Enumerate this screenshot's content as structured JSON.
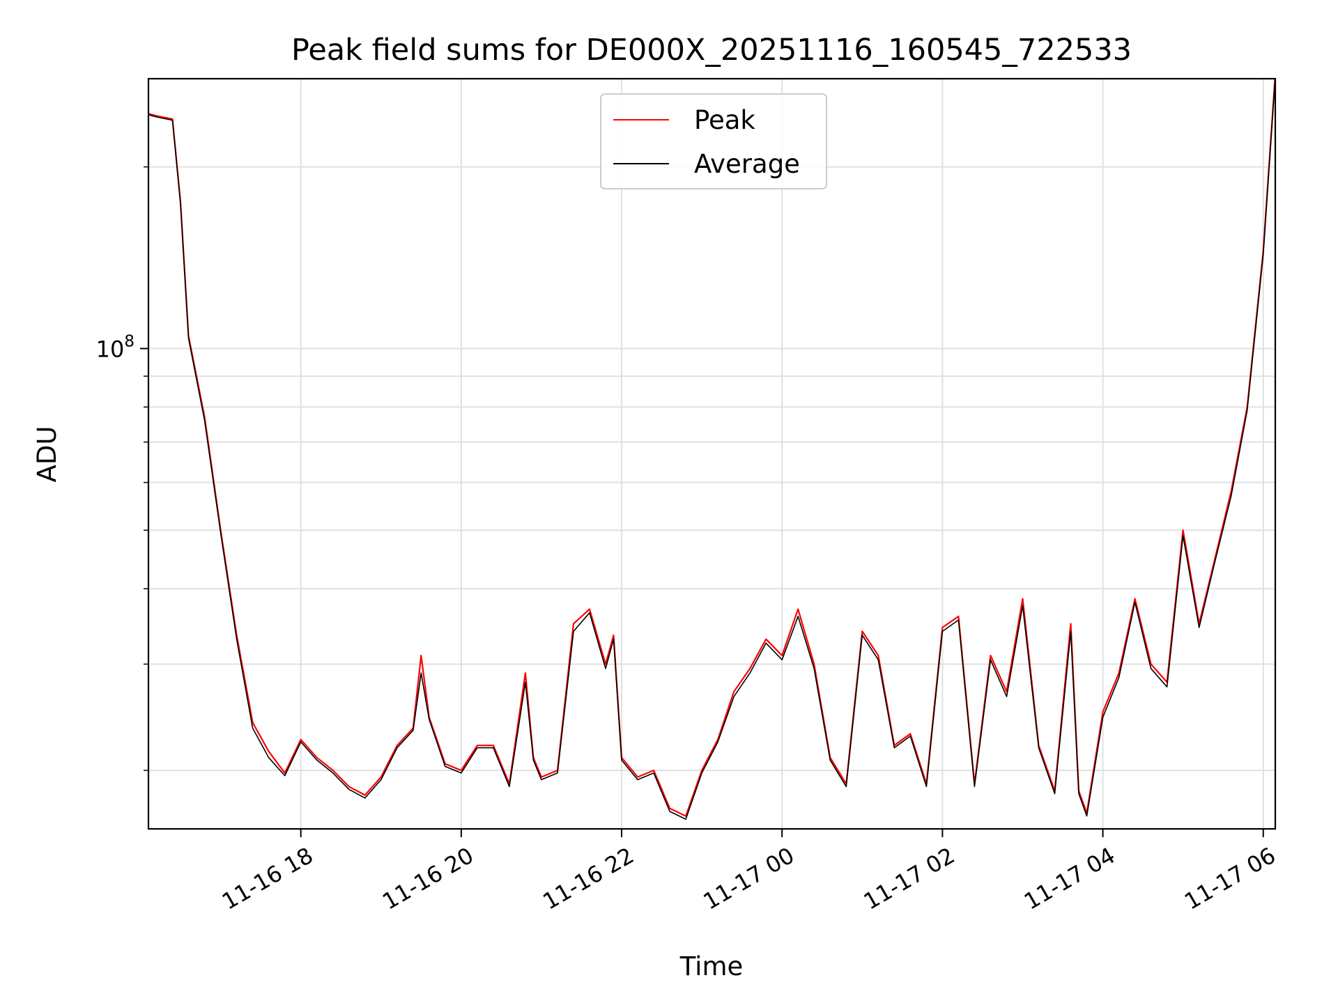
{
  "chart_data": {
    "type": "line",
    "title": "Peak field sums for DE000X_20251116_160545_722533",
    "xlabel": "Time",
    "ylabel": "ADU",
    "yscale": "log",
    "ylim": [
      16000000,
      280000000
    ],
    "xlim_hours": [
      16.1,
      30.15
    ],
    "x_ticks": [
      {
        "label": "11-16 18",
        "hour": 18
      },
      {
        "label": "11-16 20",
        "hour": 20
      },
      {
        "label": "11-16 22",
        "hour": 22
      },
      {
        "label": "11-17 00",
        "hour": 24
      },
      {
        "label": "11-17 02",
        "hour": 26
      },
      {
        "label": "11-17 04",
        "hour": 28
      },
      {
        "label": "11-17 06",
        "hour": 30
      }
    ],
    "y_major_tick": {
      "label_base": "10",
      "label_exp": "8",
      "value": 100000000
    },
    "grid": true,
    "legend_position": "upper center",
    "series": [
      {
        "name": "Peak",
        "color": "#ff0000",
        "x_hours": [
          16.1,
          16.2,
          16.4,
          16.5,
          16.6,
          16.8,
          17.0,
          17.2,
          17.4,
          17.6,
          17.8,
          18.0,
          18.2,
          18.4,
          18.6,
          18.8,
          19.0,
          19.2,
          19.4,
          19.5,
          19.6,
          19.8,
          20.0,
          20.2,
          20.4,
          20.6,
          20.8,
          20.9,
          21.0,
          21.2,
          21.4,
          21.6,
          21.8,
          21.9,
          22.0,
          22.2,
          22.4,
          22.6,
          22.8,
          23.0,
          23.2,
          23.4,
          23.6,
          23.8,
          24.0,
          24.2,
          24.4,
          24.6,
          24.8,
          25.0,
          25.2,
          25.4,
          25.6,
          25.8,
          26.0,
          26.2,
          26.4,
          26.6,
          26.8,
          27.0,
          27.2,
          27.4,
          27.6,
          27.7,
          27.8,
          28.0,
          28.2,
          28.4,
          28.6,
          28.8,
          29.0,
          29.2,
          29.4,
          29.6,
          29.8,
          30.0,
          30.15
        ],
        "values": [
          245000000,
          243000000,
          240000000,
          175000000,
          105000000,
          77000000,
          50000000,
          33500000,
          24000000,
          21500000,
          19800000,
          22500000,
          21000000,
          20000000,
          18800000,
          18200000,
          19500000,
          22000000,
          23500000,
          31000000,
          24500000,
          20500000,
          20000000,
          22000000,
          22000000,
          19000000,
          29000000,
          21000000,
          19500000,
          20000000,
          35000000,
          37000000,
          30000000,
          33500000,
          21000000,
          19500000,
          20000000,
          17300000,
          16800000,
          20000000,
          22500000,
          27000000,
          29500000,
          33000000,
          31000000,
          37000000,
          30000000,
          21000000,
          19000000,
          34000000,
          31000000,
          22000000,
          23000000,
          19000000,
          34500000,
          36000000,
          19000000,
          31000000,
          27000000,
          38500000,
          22000000,
          18500000,
          35000000,
          18500000,
          17000000,
          25000000,
          29000000,
          38500000,
          30000000,
          28000000,
          50000000,
          35000000,
          45000000,
          58000000,
          80000000,
          145000000,
          285000000
        ]
      },
      {
        "name": "Average",
        "color": "#000000",
        "x_hours": [
          16.1,
          16.2,
          16.4,
          16.5,
          16.6,
          16.8,
          17.0,
          17.2,
          17.4,
          17.6,
          17.8,
          18.0,
          18.2,
          18.4,
          18.6,
          18.8,
          19.0,
          19.2,
          19.4,
          19.5,
          19.6,
          19.8,
          20.0,
          20.2,
          20.4,
          20.6,
          20.8,
          20.9,
          21.0,
          21.2,
          21.4,
          21.6,
          21.8,
          21.9,
          22.0,
          22.2,
          22.4,
          22.6,
          22.8,
          23.0,
          23.2,
          23.4,
          23.6,
          23.8,
          24.0,
          24.2,
          24.4,
          24.6,
          24.8,
          25.0,
          25.2,
          25.4,
          25.6,
          25.8,
          26.0,
          26.2,
          26.4,
          26.6,
          26.8,
          27.0,
          27.2,
          27.4,
          27.6,
          27.7,
          27.8,
          28.0,
          28.2,
          28.4,
          28.6,
          28.8,
          29.0,
          29.2,
          29.4,
          29.6,
          29.8,
          30.0,
          30.15
        ],
        "values": [
          244000000,
          242000000,
          239000000,
          174000000,
          104000000,
          76000000,
          49500000,
          33000000,
          23500000,
          21000000,
          19600000,
          22300000,
          20800000,
          19800000,
          18600000,
          18000000,
          19300000,
          21800000,
          23300000,
          29000000,
          24300000,
          20300000,
          19800000,
          21800000,
          21800000,
          18800000,
          28000000,
          20800000,
          19300000,
          19800000,
          34000000,
          36500000,
          29500000,
          33000000,
          20800000,
          19300000,
          19800000,
          17100000,
          16600000,
          19800000,
          22300000,
          26500000,
          29000000,
          32500000,
          30500000,
          36000000,
          29500000,
          20800000,
          18800000,
          33500000,
          30500000,
          21800000,
          22800000,
          18800000,
          34000000,
          35500000,
          18800000,
          30500000,
          26500000,
          37500000,
          21800000,
          18300000,
          34000000,
          18300000,
          16800000,
          24500000,
          28500000,
          38000000,
          29500000,
          27500000,
          49000000,
          34500000,
          44500000,
          57000000,
          79000000,
          143000000,
          282000000
        ]
      }
    ]
  }
}
